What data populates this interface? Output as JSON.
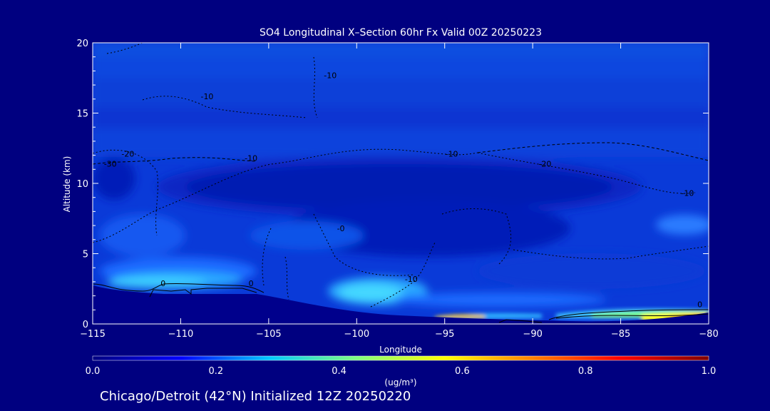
{
  "chart_data": {
    "type": "heatmap",
    "title": "SO4 Longitudinal X–Section 60hr  Fx Valid 00Z 20250223",
    "xlabel": "Longitude",
    "ylabel": "Altitude (km)",
    "xlim": [
      -115,
      -80
    ],
    "ylim": [
      0,
      20
    ],
    "x_ticks": [
      -115,
      -110,
      -105,
      -100,
      -95,
      -90,
      -85,
      -80
    ],
    "x_tick_labels": [
      "−115",
      "−110",
      "−105",
      "−100",
      "−95",
      "−90",
      "−85",
      "−80"
    ],
    "y_ticks": [
      0,
      5,
      10,
      15,
      20
    ],
    "y_tick_labels": [
      "0",
      "5",
      "10",
      "15",
      "20"
    ],
    "colorbar": {
      "min": 0.0,
      "max": 1.0,
      "ticks": [
        0.0,
        0.2,
        0.4,
        0.6,
        0.8,
        1.0
      ],
      "tick_labels": [
        "0.0",
        "0.2",
        "0.4",
        "0.6",
        "0.8",
        "1.0"
      ],
      "label": "(ug/m³)",
      "colors": [
        "#000080",
        "#0000ff",
        "#00c8ff",
        "#80ff80",
        "#ffff00",
        "#ff8000",
        "#ff0000",
        "#800000"
      ]
    },
    "contour_labels": [
      {
        "text": "-10",
        "lon": -101.5,
        "alt": 17.5
      },
      {
        "text": "-20",
        "lon": -113.0,
        "alt": 11.9
      },
      {
        "text": "-30",
        "lon": -114.0,
        "alt": 11.2
      },
      {
        "text": "-10",
        "lon": -108.5,
        "alt": 16.0
      },
      {
        "text": "-10",
        "lon": -106.0,
        "alt": 11.6
      },
      {
        "text": "-10",
        "lon": -94.6,
        "alt": 11.9
      },
      {
        "text": "-20",
        "lon": -89.3,
        "alt": 11.2
      },
      {
        "text": "-10",
        "lon": -81.2,
        "alt": 9.1
      },
      {
        "text": "-0",
        "lon": -100.9,
        "alt": 6.6
      },
      {
        "text": "0",
        "lon": -111.0,
        "alt": 2.7
      },
      {
        "text": "0",
        "lon": -106.0,
        "alt": 2.7
      },
      {
        "text": "-10",
        "lon": -96.9,
        "alt": 3.0
      },
      {
        "text": "0",
        "lon": -80.5,
        "alt": 1.2
      }
    ]
  },
  "footer": "Chicago/Detroit (42°N) Initialized 12Z 20250220"
}
